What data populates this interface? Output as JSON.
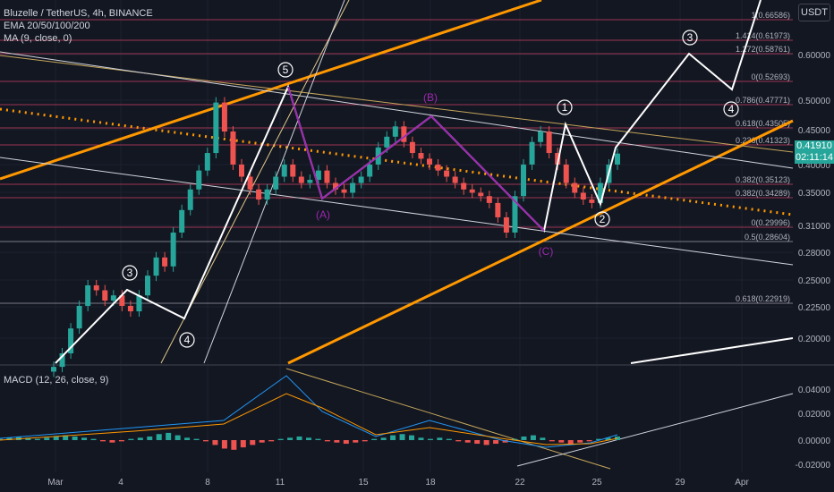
{
  "legend": {
    "symbol": "Bluzelle / TetherUS, 4h, BINANCE",
    "ema": "EMA 20/50/100/200",
    "ma": "MA (9, close, 0)",
    "macd": "MACD (12, 26, close, 9)"
  },
  "currency_button": "USDT",
  "price_badge": {
    "price": "0.41910",
    "countdown": "02:11:14"
  },
  "colors": {
    "background": "#131722",
    "up": "#26a69a",
    "down": "#ef5350",
    "orange": "#ff9800",
    "wave": "#ffffff",
    "abc": "#9c27b0",
    "fib": "#9c3553",
    "grid": "#1e222d"
  },
  "chart_data": [
    {
      "type": "candlestick",
      "title": "Bluzelle / TetherUS, 4h, BINANCE",
      "x_ticks": [
        "Mar",
        "4",
        "8",
        "11",
        "15",
        "18",
        "22",
        "25",
        "29",
        "Apr"
      ],
      "y_scale": "log",
      "y_ticks": [
        "0.60000",
        "0.50000",
        "0.45000",
        "0.40000",
        "0.35000",
        "0.31000",
        "0.28000",
        "0.25000",
        "0.22500",
        "0.20000"
      ],
      "last_price": 0.4191,
      "approx_closes": [
        0.17,
        0.18,
        0.2,
        0.22,
        0.24,
        0.235,
        0.225,
        0.23,
        0.22,
        0.215,
        0.23,
        0.25,
        0.27,
        0.26,
        0.3,
        0.33,
        0.36,
        0.39,
        0.42,
        0.52,
        0.46,
        0.4,
        0.38,
        0.36,
        0.345,
        0.36,
        0.38,
        0.4,
        0.38,
        0.37,
        0.375,
        0.39,
        0.37,
        0.36,
        0.355,
        0.37,
        0.38,
        0.4,
        0.43,
        0.45,
        0.47,
        0.44,
        0.42,
        0.41,
        0.4,
        0.39,
        0.38,
        0.37,
        0.36,
        0.355,
        0.35,
        0.34,
        0.32,
        0.3,
        0.35,
        0.4,
        0.44,
        0.46,
        0.42,
        0.4,
        0.37,
        0.355,
        0.345,
        0.34,
        0.37,
        0.4,
        0.419
      ],
      "fib_levels": [
        {
          "ratio": "1",
          "label": "1(0.66586)"
        },
        {
          "ratio": "1.414",
          "label": "1.414(0.61973)"
        },
        {
          "ratio": "1.272",
          "label": "1.272(0.58761)"
        },
        {
          "ratio": "0",
          "label": "0(0.52693)"
        },
        {
          "ratio": "0.786",
          "label": "0.786(0.47771)"
        },
        {
          "ratio": "0.618",
          "label": "0.618(0.43505)"
        },
        {
          "ratio": "0.236",
          "label": "0.236(0.41323)"
        },
        {
          "ratio": "0.382 upper",
          "label": "0.382(0.35123)"
        },
        {
          "ratio": "0.382",
          "label": "0.382(0.34289)"
        },
        {
          "ratio": "0.5",
          "label": "0(0.29996)"
        },
        {
          "ratio": "0.5",
          "label": "0.5(0.28604)"
        },
        {
          "ratio": "0.618",
          "label": "0.618(0.22919)"
        }
      ],
      "wave_labels": [
        "3",
        "4",
        "5",
        "1",
        "2",
        "3",
        "4"
      ],
      "abc_labels": [
        "(A)",
        "(B)",
        "(C)"
      ]
    },
    {
      "type": "bar",
      "title": "MACD (12, 26, close, 9)",
      "y_ticks": [
        "0.04000",
        "0.02000",
        "0.00000",
        "-0.02000"
      ],
      "histogram": [
        0.001,
        0.002,
        0.003,
        0.002,
        0.001,
        0.002,
        0.003,
        0.004,
        0.003,
        0.002,
        0.001,
        -0.001,
        -0.002,
        -0.001,
        0.001,
        0.002,
        0.003,
        0.005,
        0.006,
        0.004,
        0.002,
        0.001,
        -0.001,
        -0.004,
        -0.007,
        -0.008,
        -0.006,
        -0.004,
        -0.002,
        -0.001,
        0.001,
        0.002,
        0.003,
        0.002,
        0.001,
        -0.001,
        -0.002,
        -0.003,
        -0.002,
        -0.001,
        0.001,
        0.002,
        0.004,
        0.005,
        0.004,
        0.002,
        0.001,
        0.002,
        0.001,
        -0.001,
        -0.002,
        -0.003,
        -0.004,
        -0.003,
        -0.002,
        0.001,
        0.003,
        0.004,
        0.002,
        -0.001,
        -0.002,
        -0.003,
        -0.002,
        -0.001,
        0.001,
        0.002,
        0.003
      ]
    }
  ]
}
